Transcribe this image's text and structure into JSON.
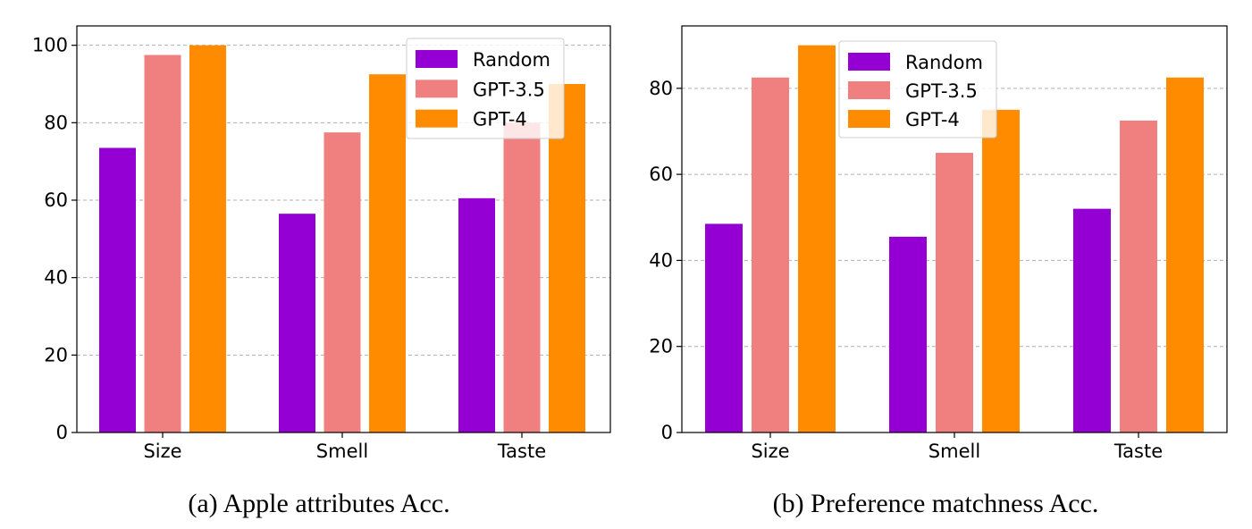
{
  "chart_data": [
    {
      "type": "bar",
      "categories": [
        "Size",
        "Smell",
        "Taste"
      ],
      "series": [
        {
          "name": "Random",
          "color": "#9400d3",
          "values": [
            73.5,
            56.5,
            60.5
          ]
        },
        {
          "name": "GPT-3.5",
          "color": "#f08080",
          "values": [
            97.5,
            77.5,
            80.0
          ]
        },
        {
          "name": "GPT-4",
          "color": "#ff8c00",
          "values": [
            100.0,
            92.5,
            90.0
          ]
        }
      ],
      "ylim": [
        0,
        105
      ],
      "yticks": [
        0,
        20,
        40,
        60,
        80,
        100
      ],
      "grid": "y-dashed",
      "legend": "top-right",
      "caption": "(a)  Apple attributes Acc."
    },
    {
      "type": "bar",
      "categories": [
        "Size",
        "Smell",
        "Taste"
      ],
      "series": [
        {
          "name": "Random",
          "color": "#9400d3",
          "values": [
            48.5,
            45.5,
            52.0
          ]
        },
        {
          "name": "GPT-3.5",
          "color": "#f08080",
          "values": [
            82.5,
            65.0,
            72.5
          ]
        },
        {
          "name": "GPT-4",
          "color": "#ff8c00",
          "values": [
            90.0,
            75.0,
            82.5
          ]
        }
      ],
      "ylim": [
        0,
        94.5
      ],
      "yticks": [
        0,
        20,
        40,
        60,
        80
      ],
      "grid": "y-dashed",
      "legend": "top-center",
      "caption": "(b)  Preference matchness Acc."
    }
  ]
}
